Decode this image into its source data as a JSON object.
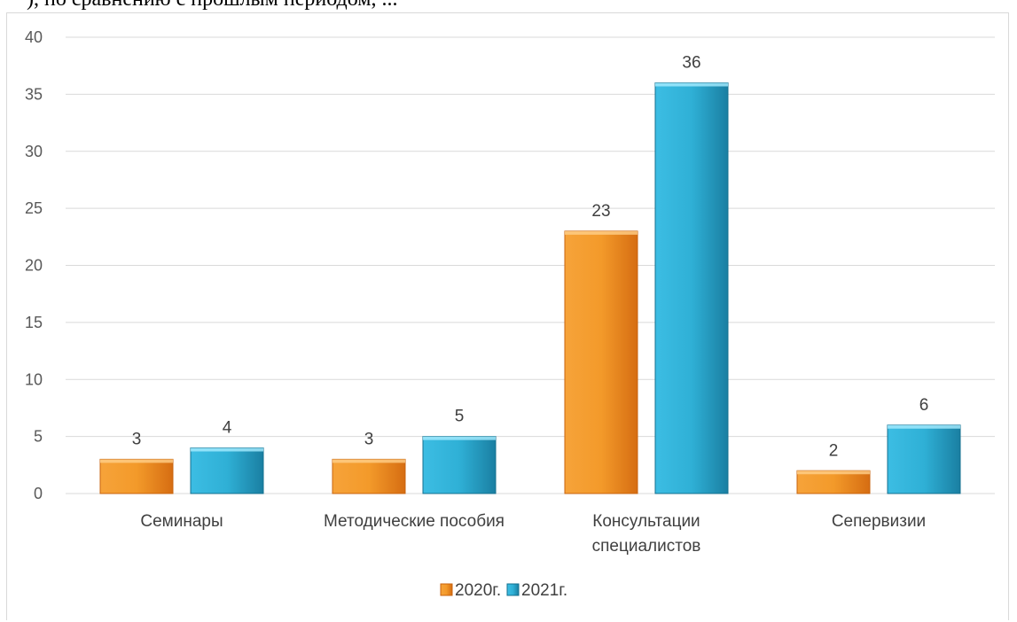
{
  "top_fragment": "), по сравнению с прошлым периодом, ...",
  "chart_data": {
    "type": "bar",
    "categories": [
      "Семинары",
      "Методические пособия",
      "Консультации специалистов",
      "Сепервизии"
    ],
    "category_lines": [
      [
        "Семинары"
      ],
      [
        "Методические пособия"
      ],
      [
        "Консультации",
        "специалистов"
      ],
      [
        "Сепервизии"
      ]
    ],
    "series": [
      {
        "name": "2020г.",
        "values": [
          3,
          3,
          23,
          2
        ]
      },
      {
        "name": "2021г.",
        "values": [
          4,
          5,
          36,
          6
        ]
      }
    ],
    "y_ticks": [
      0,
      5,
      10,
      15,
      20,
      25,
      30,
      35,
      40
    ],
    "ylim": [
      0,
      40
    ],
    "grid": true,
    "legend_position": "bottom",
    "colors": {
      "2020г.": "#f08a24",
      "2021г.": "#2aa2c6",
      "grid": "#d9d9d9"
    }
  }
}
